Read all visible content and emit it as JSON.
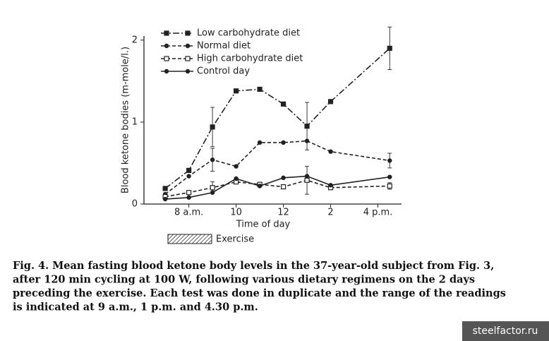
{
  "chart_data": {
    "type": "line",
    "xlabel": "Time of day",
    "ylabel": "Blood ketone bodies (m-mole/l.)",
    "x": [
      7,
      8,
      9,
      10,
      11,
      12,
      13,
      14,
      16.5
    ],
    "xlim": [
      6.1,
      17
    ],
    "xticks": [
      {
        "value": 8,
        "label": "8 a.m."
      },
      10,
      12,
      {
        "value": 14,
        "label": "2"
      },
      {
        "value": 16,
        "label": "4 p.m."
      }
    ],
    "ylim": [
      0,
      2.05
    ],
    "yticks": [
      0,
      1,
      2
    ],
    "series": [
      {
        "name": "Low carbohydrate diet",
        "color": "#222222",
        "dash": "dash-dot",
        "marker": "filled-square",
        "values": [
          0.19,
          0.41,
          0.94,
          1.38,
          1.4,
          1.22,
          0.95,
          1.25,
          1.9
        ],
        "errors": [
          null,
          null,
          0.24,
          null,
          null,
          null,
          0.29,
          null,
          0.26
        ]
      },
      {
        "name": "Normal diet",
        "color": "#222222",
        "dash": "dashed",
        "marker": "filled-circle",
        "values": [
          0.12,
          0.34,
          0.54,
          0.46,
          0.75,
          0.75,
          0.77,
          0.64,
          0.53
        ],
        "errors": [
          null,
          null,
          0.14,
          null,
          null,
          null,
          null,
          null,
          0.09
        ]
      },
      {
        "name": "High carbohydrate diet",
        "color": "#222222",
        "dash": "dashed",
        "marker": "open-square",
        "values": [
          0.09,
          0.14,
          0.2,
          0.27,
          0.24,
          0.21,
          0.29,
          0.2,
          0.22
        ],
        "errors": [
          null,
          null,
          0.07,
          null,
          null,
          null,
          0.17,
          null,
          0.04
        ]
      },
      {
        "name": "Control day",
        "color": "#222222",
        "dash": "solid",
        "marker": "filled-circle",
        "values": [
          0.06,
          0.08,
          0.14,
          0.31,
          0.22,
          0.32,
          0.34,
          0.23,
          0.33
        ],
        "errors": [
          null,
          null,
          null,
          null,
          null,
          null,
          null,
          null,
          null
        ]
      }
    ],
    "annotation": "Exercise",
    "caption": [
      "Fig. 4. Mean fasting blood ketone body levels in the 37-year-old subject from Fig. 3,",
      "after 120 min cycling at 100 W, following various dietary regimens on the 2 days",
      "preceding the exercise. Each test was done in duplicate and the range of the readings",
      "is indicated at 9 a.m., 1 p.m. and 4.30 p.m."
    ],
    "watermark": "steelfactor.ru"
  }
}
